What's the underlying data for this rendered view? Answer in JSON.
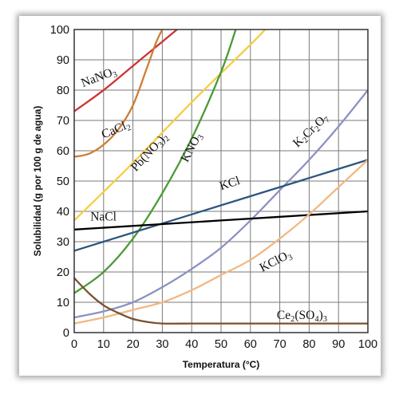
{
  "chart_data": {
    "type": "line",
    "title": "",
    "xlabel": "Temperatura (°C)",
    "ylabel": "Solubilidad (g por 100 g de agua)",
    "xlim": [
      0,
      100
    ],
    "ylim": [
      0,
      100
    ],
    "x_ticks": [
      "0",
      "10",
      "20",
      "30",
      "40",
      "50",
      "60",
      "70",
      "80",
      "90",
      "100"
    ],
    "y_ticks": [
      "0",
      "10",
      "20",
      "30",
      "40",
      "50",
      "60",
      "70",
      "80",
      "90",
      "100"
    ],
    "grid": true,
    "series": [
      {
        "name": "NaNO₃",
        "display": {
          "main": "NaNO",
          "sub": "3"
        },
        "color": "#cc3433",
        "x": [
          0,
          10,
          20,
          30,
          35
        ],
        "y": [
          73,
          80,
          88,
          96,
          100
        ]
      },
      {
        "name": "CaCl₂",
        "display": {
          "main": "CaCl",
          "sub": "2"
        },
        "color": "#cf7d32",
        "x": [
          0,
          5,
          10,
          15,
          20,
          25,
          28,
          30
        ],
        "y": [
          58,
          59,
          62,
          67,
          75,
          88,
          96,
          100
        ]
      },
      {
        "name": "Pb(NO₃)₂",
        "display": {
          "main": "Pb(NO",
          "sub": "3",
          "main2": ")",
          "sub2": "2"
        },
        "color": "#f4cd46",
        "x": [
          0,
          20,
          40,
          60,
          65
        ],
        "y": [
          37,
          56,
          76,
          95,
          100
        ]
      },
      {
        "name": "KNO₃",
        "display": {
          "main": "KNO",
          "sub": "3"
        },
        "color": "#4b9a35",
        "x": [
          0,
          10,
          20,
          30,
          40,
          50,
          55
        ],
        "y": [
          13,
          20,
          31,
          46,
          64,
          86,
          100
        ]
      },
      {
        "name": "K₂Cr₂O₇",
        "display": {
          "main": "K",
          "sub": "2",
          "main2": "Cr",
          "sub2": "2",
          "main3": "O",
          "sub3": "7"
        },
        "color": "#8b92c2",
        "x": [
          0,
          10,
          20,
          30,
          40,
          50,
          60,
          70,
          80,
          90,
          100
        ],
        "y": [
          5,
          7,
          10,
          15,
          21,
          28,
          37,
          47,
          57,
          68,
          80
        ]
      },
      {
        "name": "KCl",
        "display": {
          "main": "KCl"
        },
        "color": "#2d5680",
        "x": [
          0,
          20,
          40,
          60,
          80,
          100
        ],
        "y": [
          27,
          33,
          39,
          45,
          51,
          57
        ]
      },
      {
        "name": "NaCl",
        "display": {
          "main": "NaCl"
        },
        "color": "#000000",
        "x": [
          0,
          50,
          100
        ],
        "y": [
          34,
          37,
          40
        ]
      },
      {
        "name": "KClO₃",
        "display": {
          "main": "KClO",
          "sub": "3"
        },
        "color": "#f2b883",
        "x": [
          0,
          10,
          20,
          30,
          40,
          50,
          60,
          70,
          80,
          90,
          100
        ],
        "y": [
          3,
          5,
          7.5,
          10,
          14,
          19,
          24,
          31,
          39,
          48,
          57
        ]
      },
      {
        "name": "Ce₂(SO₄)₃",
        "display": {
          "main": "Ce",
          "sub": "2",
          "main2": "(SO",
          "sub2": "4",
          "main3": ")",
          "sub3": "3"
        },
        "color": "#7a5230",
        "x": [
          0,
          5,
          10,
          15,
          20,
          25,
          30,
          40,
          50,
          60,
          70,
          80,
          90,
          100
        ],
        "y": [
          18,
          13,
          9,
          6.5,
          4.5,
          3.5,
          3,
          3,
          3,
          3,
          3,
          3,
          3,
          3
        ]
      }
    ]
  }
}
